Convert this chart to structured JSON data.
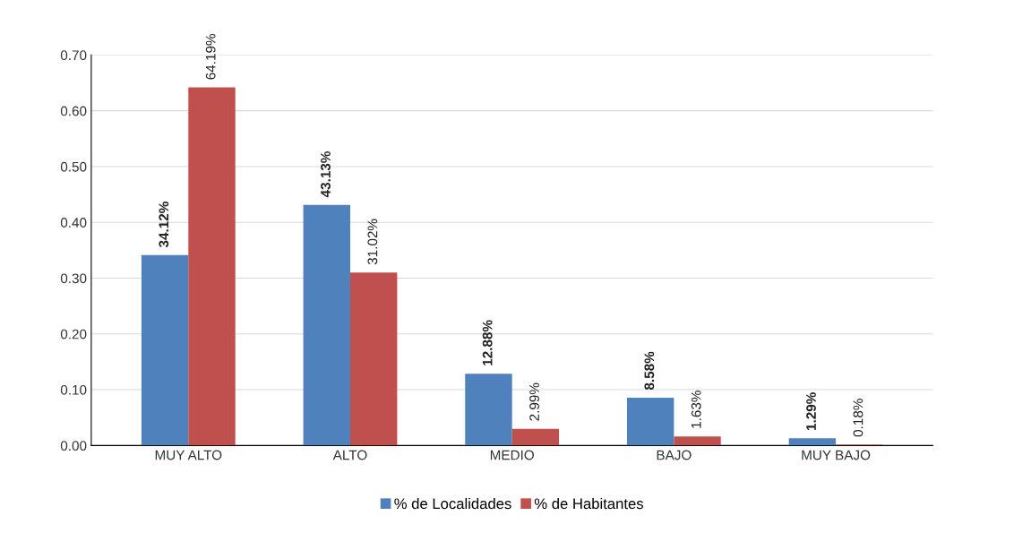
{
  "chart_data": {
    "type": "bar",
    "categories": [
      "MUY ALTO",
      "ALTO",
      "MEDIO",
      "BAJO",
      "MUY BAJO"
    ],
    "series": [
      {
        "name": "% de Localidades",
        "color": "#4f81bd",
        "values": [
          0.3412,
          0.4313,
          0.1288,
          0.0858,
          0.0129
        ],
        "value_labels": [
          "34.12%",
          "43.13%",
          "12.88%",
          "8.58%",
          "1.29%"
        ]
      },
      {
        "name": "% de Habitantes",
        "color": "#c0504d",
        "values": [
          0.6419,
          0.3102,
          0.0299,
          0.0163,
          0.0018
        ],
        "value_labels": [
          "64.19%",
          "31.02%",
          "2.99%",
          "1.63%",
          "0.18%"
        ]
      }
    ],
    "ylim": [
      0,
      0.7
    ],
    "yticks": [
      {
        "value": 0,
        "label": "0.00"
      },
      {
        "value": 0.1,
        "label": "0.10"
      },
      {
        "value": 0.2,
        "label": "0.20"
      },
      {
        "value": 0.3,
        "label": "0.30"
      },
      {
        "value": 0.4,
        "label": "0.40"
      },
      {
        "value": 0.5,
        "label": "0.50"
      },
      {
        "value": 0.6,
        "label": "0.60"
      },
      {
        "value": 0.7,
        "label": "0.70"
      }
    ],
    "grid": "y",
    "legend": "bottom"
  }
}
